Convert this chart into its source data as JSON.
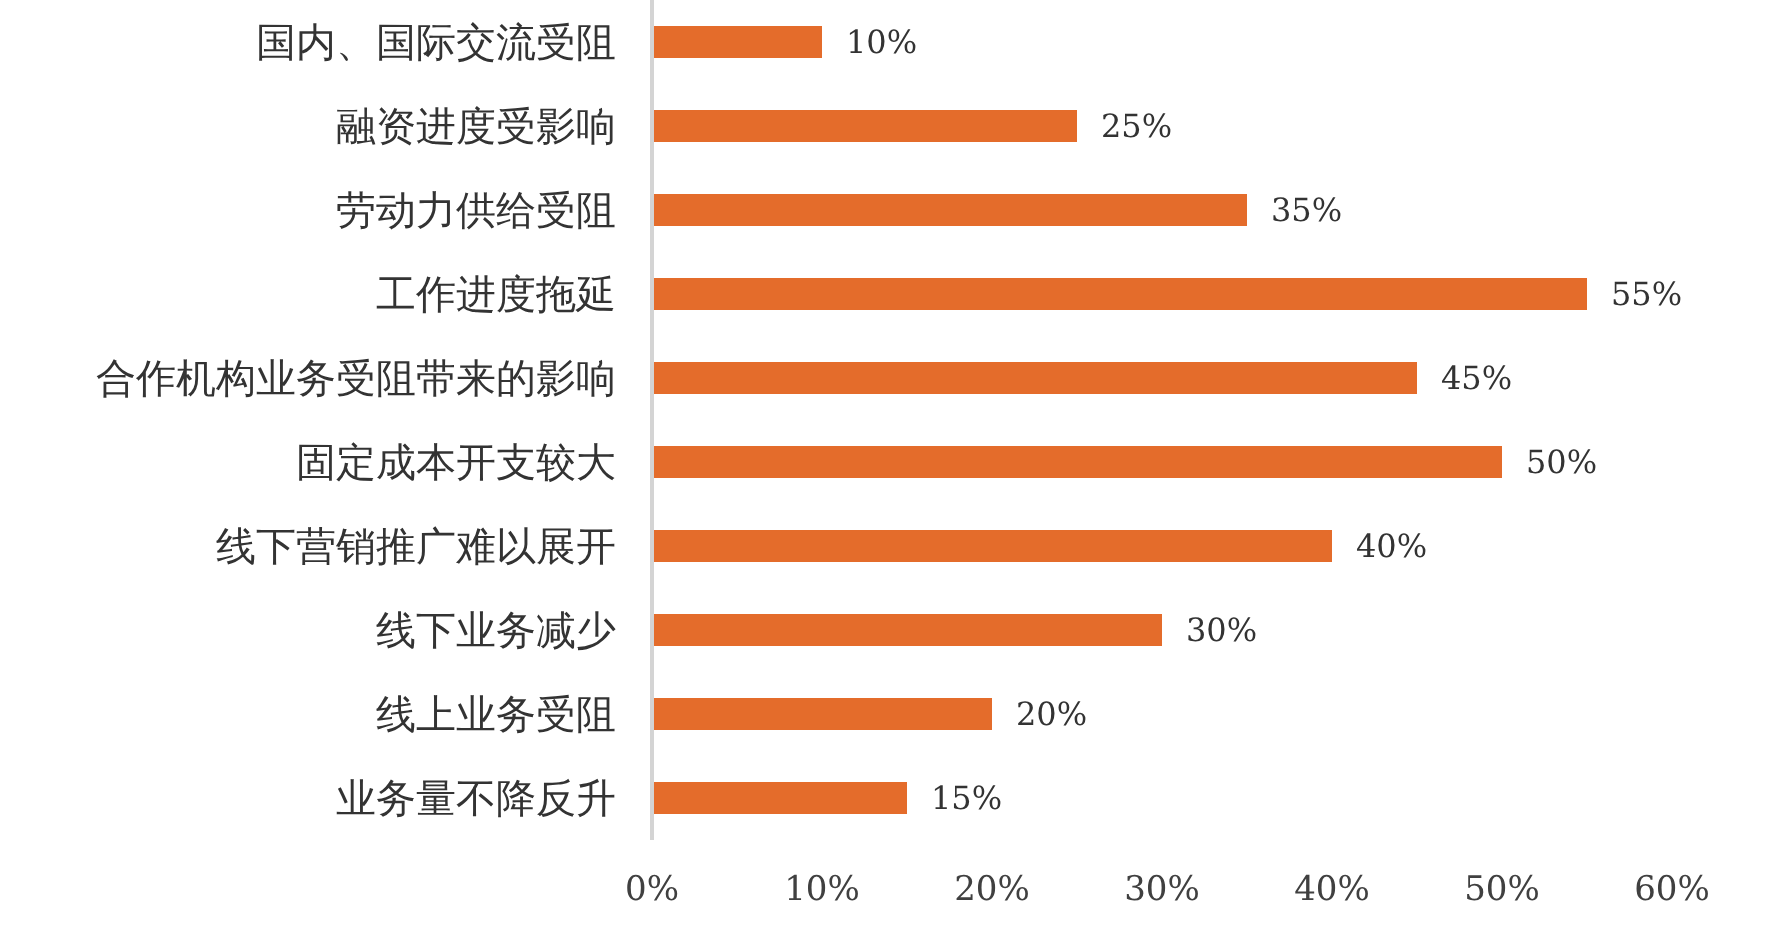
{
  "chart_data": {
    "type": "bar",
    "orientation": "horizontal",
    "categories": [
      "国内、国际交流受阻",
      "融资进度受影响",
      "劳动力供给受阻",
      "工作进度拖延",
      "合作机构业务受阻带来的影响",
      "固定成本开支较大",
      "线下营销推广难以展开",
      "线下业务减少",
      "线上业务受阻",
      "业务量不降反升"
    ],
    "values": [
      10,
      25,
      35,
      55,
      45,
      50,
      40,
      30,
      20,
      15
    ],
    "value_labels": [
      "10%",
      "25%",
      "35%",
      "55%",
      "45%",
      "50%",
      "40%",
      "30%",
      "20%",
      "15%"
    ],
    "color": "#e46c2b",
    "xlim": [
      0,
      60
    ],
    "xticks": [
      {
        "value": 0,
        "label": "0%"
      },
      {
        "value": 10,
        "label": "10%"
      },
      {
        "value": 20,
        "label": "20%"
      },
      {
        "value": 30,
        "label": "30%"
      },
      {
        "value": 40,
        "label": "40%"
      },
      {
        "value": 50,
        "label": "50%"
      },
      {
        "value": 60,
        "label": "60%"
      }
    ]
  }
}
